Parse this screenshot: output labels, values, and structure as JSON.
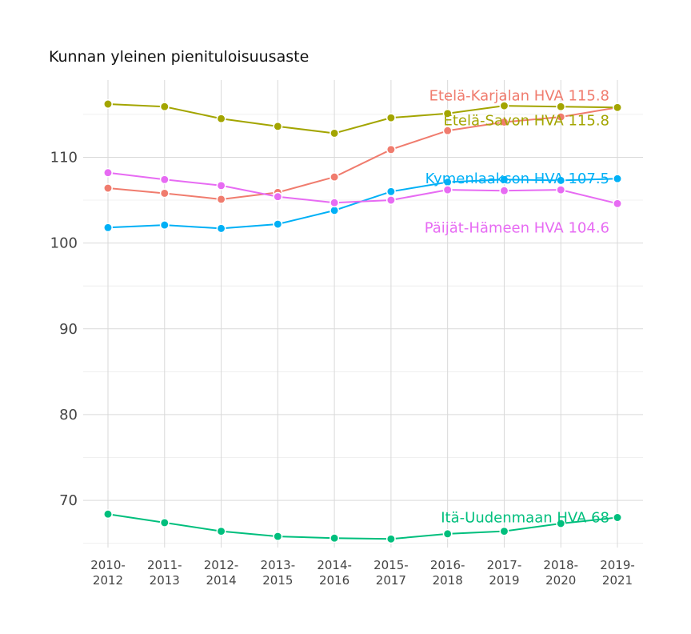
{
  "chart_data": {
    "type": "line",
    "title": "Kunnan yleinen pienituloisuusaste",
    "xlabel": "",
    "ylabel": "",
    "ylim": [
      64.5,
      119
    ],
    "yticks": [
      70,
      80,
      90,
      100,
      110
    ],
    "grid": true,
    "legend": "direct-labels-right",
    "categories": [
      [
        "2010-",
        "2012"
      ],
      [
        "2011-",
        "2013"
      ],
      [
        "2012-",
        "2014"
      ],
      [
        "2013-",
        "2015"
      ],
      [
        "2014-",
        "2016"
      ],
      [
        "2015-",
        "2017"
      ],
      [
        "2016-",
        "2018"
      ],
      [
        "2017-",
        "2019"
      ],
      [
        "2018-",
        "2020"
      ],
      [
        "2019-",
        "2021"
      ]
    ],
    "series": [
      {
        "name": "Etelä-Karjalan HVA",
        "label": "Etelä-Karjalan HVA 115.8",
        "color": "#F07C6E",
        "values": [
          106.4,
          105.8,
          105.1,
          105.9,
          107.7,
          110.9,
          113.1,
          114.1,
          114.7,
          115.8
        ]
      },
      {
        "name": "Etelä-Savon HVA",
        "label": "Etelä-Savon HVA 115.8",
        "color": "#A3A500",
        "values": [
          116.2,
          115.9,
          114.5,
          113.6,
          112.8,
          114.6,
          115.1,
          116.0,
          115.9,
          115.8
        ]
      },
      {
        "name": "Kymenlaakson HVA",
        "label": "Kymenlaakson HVA 107.5",
        "color": "#00B0F6",
        "values": [
          101.8,
          102.1,
          101.7,
          102.2,
          103.8,
          106.0,
          107.1,
          107.4,
          107.3,
          107.5
        ]
      },
      {
        "name": "Päijät-Hämeen HVA",
        "label": "Päijät-Hämeen HVA 104.6",
        "color": "#E76BF3",
        "values": [
          108.2,
          107.4,
          106.7,
          105.4,
          104.7,
          105.0,
          106.2,
          106.1,
          106.2,
          104.6
        ]
      },
      {
        "name": "Itä-Uudenmaan HVA",
        "label": "Itä-Uudenmaan HVA 68",
        "color": "#00BF7D",
        "values": [
          68.4,
          67.4,
          66.4,
          65.8,
          65.6,
          65.5,
          66.1,
          66.4,
          67.3,
          68.0
        ]
      }
    ]
  }
}
